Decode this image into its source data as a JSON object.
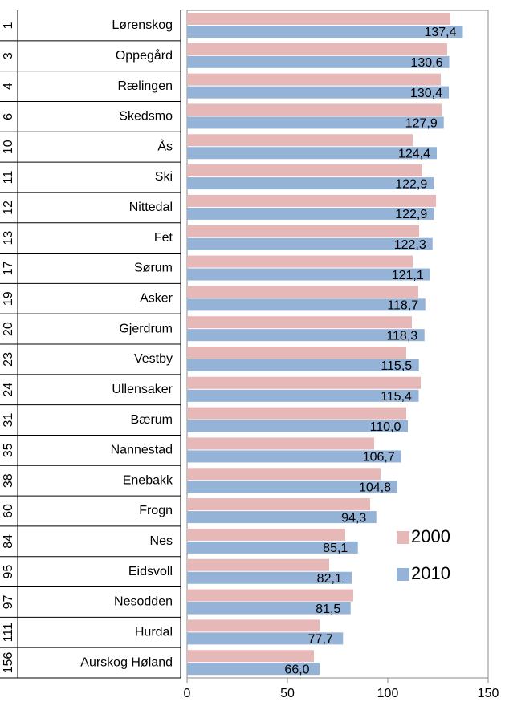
{
  "chart_data": {
    "type": "bar",
    "ranks": [
      "1",
      "3",
      "4",
      "6",
      "10",
      "11",
      "12",
      "13",
      "17",
      "19",
      "20",
      "23",
      "24",
      "31",
      "35",
      "38",
      "60",
      "84",
      "95",
      "97",
      "111",
      "156"
    ],
    "categories": [
      "Lørenskog",
      "Oppegård",
      "Rælingen",
      "Skedsmo",
      "Ås",
      "Ski",
      "Nittedal",
      "Fet",
      "Sørum",
      "Asker",
      "Gjerdrum",
      "Vestby",
      "Ullensaker",
      "Bærum",
      "Nannestad",
      "Enebakk",
      "Frogn",
      "Nes",
      "Eidsvoll",
      "Nesodden",
      "Hurdal",
      "Aurskog Høland"
    ],
    "series": [
      {
        "name": "2000",
        "color": "#e6b9b8",
        "values": [
          131.2,
          129.6,
          126.4,
          126.8,
          112.4,
          117.2,
          124,
          115.6,
          112.4,
          115.2,
          112,
          109.2,
          116.4,
          109.2,
          93.2,
          96.4,
          91.2,
          78.8,
          70.8,
          82.8,
          66,
          63.2
        ]
      },
      {
        "name": "2010",
        "color": "#95b3d7",
        "values": [
          137.4,
          130.6,
          130.4,
          127.9,
          124.4,
          122.9,
          122.9,
          122.3,
          121.1,
          118.7,
          118.3,
          115.5,
          115.4,
          110.0,
          106.7,
          104.8,
          94.3,
          85.1,
          82.1,
          81.5,
          77.7,
          66.0
        ],
        "value_labels": [
          "137,4",
          "130,6",
          "130,4",
          "127,9",
          "124,4",
          "122,9",
          "122,9",
          "122,3",
          "121,1",
          "118,7",
          "118,3",
          "115,5",
          "115,4",
          "110,0",
          "106,7",
          "104,8",
          "94,3",
          "85,1",
          "82,1",
          "81,5",
          "77,7",
          "66,0"
        ]
      }
    ],
    "xlim": [
      0,
      150
    ],
    "xticks": [
      0,
      50,
      100,
      150
    ],
    "legend": "lower right"
  }
}
